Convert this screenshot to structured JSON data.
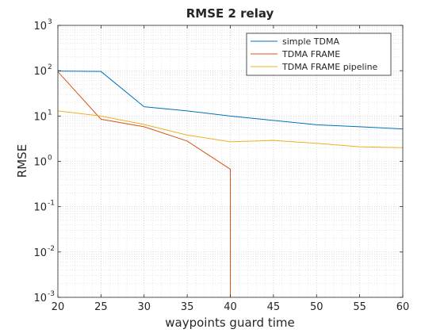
{
  "chart_data": {
    "type": "line",
    "title": "RMSE 2 relay",
    "xlabel": "waypoints guard time",
    "ylabel": "RMSE",
    "xlim": [
      20,
      60
    ],
    "ylim": [
      0.001,
      1000
    ],
    "yscale": "log",
    "grid": true,
    "minor_grid": true,
    "legend_position": "top-right",
    "x_ticks": [
      "20",
      "25",
      "30",
      "35",
      "40",
      "45",
      "50",
      "55",
      "60"
    ],
    "y_ticks": [
      {
        "base": "10",
        "exp": "-3",
        "value": 0.001
      },
      {
        "base": "10",
        "exp": "-2",
        "value": 0.01
      },
      {
        "base": "10",
        "exp": "-1",
        "value": 0.1
      },
      {
        "base": "10",
        "exp": "0",
        "value": 1
      },
      {
        "base": "10",
        "exp": "1",
        "value": 10
      },
      {
        "base": "10",
        "exp": "2",
        "value": 100
      },
      {
        "base": "10",
        "exp": "3",
        "value": 1000
      }
    ],
    "series": [
      {
        "name": "simple TDMA",
        "color": "#0072BD",
        "x": [
          20,
          25,
          30,
          35,
          40,
          45,
          50,
          55,
          60
        ],
        "values": [
          98,
          96,
          16,
          13,
          10,
          8,
          6.4,
          5.8,
          5.2
        ]
      },
      {
        "name": "TDMA FRAME",
        "color": "#D95319",
        "x": [
          20,
          25,
          30,
          35,
          40,
          40
        ],
        "values": [
          95,
          8.5,
          5.8,
          2.8,
          0.67,
          0.001
        ]
      },
      {
        "name": "TDMA FRAME pipeline",
        "color": "#EDB120",
        "x": [
          20,
          25,
          30,
          35,
          40,
          45,
          50,
          55,
          60
        ],
        "values": [
          13,
          10,
          6.5,
          3.8,
          2.7,
          2.9,
          2.5,
          2.1,
          2.0
        ]
      }
    ]
  }
}
